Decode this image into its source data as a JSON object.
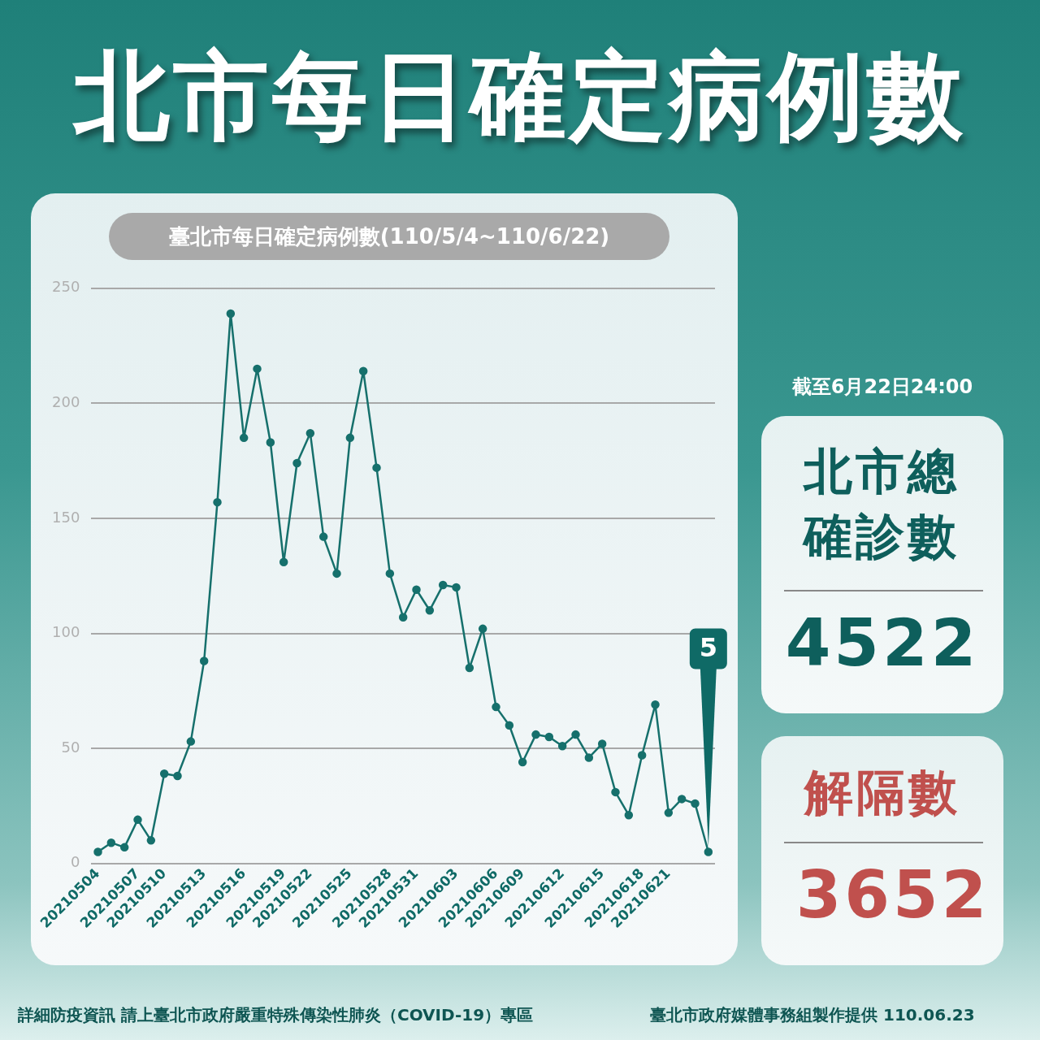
{
  "chart_data": {
    "type": "line",
    "title": "北市每日確定病例數",
    "subtitle": "臺北市每日確定病例數(110/5/4~110/6/22)",
    "categories": [
      "20210504",
      null,
      null,
      "20210507",
      null,
      "20210510",
      null,
      null,
      "20210513",
      null,
      null,
      "20210516",
      null,
      null,
      "20210519",
      null,
      "20210522",
      null,
      null,
      "20210525",
      null,
      null,
      "20210528",
      null,
      "20210531",
      null,
      null,
      "20210603",
      null,
      null,
      "20210606",
      null,
      "20210609",
      null,
      null,
      "20210612",
      null,
      null,
      "20210615",
      null,
      null,
      "20210618",
      null,
      "20210621",
      null,
      null,
      null
    ],
    "values": [
      5,
      9,
      7,
      19,
      10,
      39,
      38,
      53,
      88,
      157,
      239,
      185,
      215,
      183,
      131,
      174,
      187,
      142,
      126,
      185,
      214,
      172,
      126,
      107,
      119,
      110,
      121,
      120,
      85,
      102,
      68,
      60,
      44,
      56,
      55,
      51,
      56,
      46,
      52,
      31,
      21,
      47,
      69,
      22,
      28,
      26,
      5
    ],
    "color": "#16706c",
    "marker": "circle",
    "grid": "y",
    "ylim": [
      0,
      250
    ],
    "yticks": [
      0,
      50,
      100,
      150,
      200,
      250
    ],
    "annotations": [
      {
        "text": "5",
        "y": 5
      },
      "截至6月22日24:00",
      "北市總確診數",
      "4522",
      "解隔數",
      "3652",
      "詳細防疫資訊 請上臺北市政府嚴重特殊傳染性肺炎（COVID-19）專區",
      "臺北市政府媒體事務組製作提供 110.06.23"
    ]
  }
}
